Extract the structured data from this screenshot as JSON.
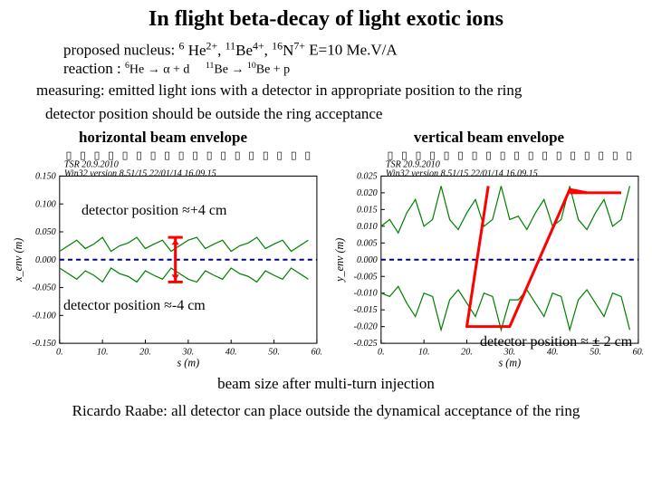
{
  "title": {
    "text": "In flight beta-decay of light exotic ions",
    "fontsize": 24
  },
  "line1": {
    "prefix": "proposed nucleus: ",
    "nuclei_html": "<sup>6</sup> He<sup>2+</sup>, <sup>11</sup>Be<sup>4+</sup>, <sup>16</sup>N<sup>7+</sup>",
    "suffix": "  E=10 Me.V/A",
    "fontsize": 17
  },
  "line2": {
    "prefix": "reaction : ",
    "reaction_html": "<sup>6</sup>He → α + d &nbsp;&nbsp;&nbsp; <sup>11</sup>Be → <sup>10</sup>Be + p",
    "fontsize": 17
  },
  "line3": {
    "text": "measuring: emitted light ions with a detector in appropriate position to the ring",
    "fontsize": 17
  },
  "line4": {
    "text": "detector position should be outside the ring acceptance",
    "fontsize": 17
  },
  "chart_left": {
    "title": "horizontal beam envelope",
    "header_text": "TSR 20.9.2010\nWin32 version 8.51/15        22/01/14 16.09.15",
    "ylabel": "x_env (m)",
    "xlabel": "s (m)",
    "xlim": [
      0,
      60
    ],
    "xtick_step": 10,
    "ylim": [
      -0.15,
      0.15
    ],
    "ytick_step": 0.05,
    "series_upper": {
      "color": "#008000",
      "points": [
        [
          0,
          0.015
        ],
        [
          2,
          0.025
        ],
        [
          4,
          0.035
        ],
        [
          6,
          0.02
        ],
        [
          8,
          0.028
        ],
        [
          10,
          0.04
        ],
        [
          12,
          0.015
        ],
        [
          14,
          0.025
        ],
        [
          16,
          0.03
        ],
        [
          18,
          0.04
        ],
        [
          20,
          0.02
        ],
        [
          22,
          0.028
        ],
        [
          24,
          0.035
        ],
        [
          26,
          0.015
        ],
        [
          28,
          0.025
        ],
        [
          30,
          0.035
        ],
        [
          32,
          0.04
        ],
        [
          34,
          0.02
        ],
        [
          36,
          0.028
        ],
        [
          38,
          0.035
        ],
        [
          40,
          0.015
        ],
        [
          42,
          0.025
        ],
        [
          44,
          0.03
        ],
        [
          46,
          0.04
        ],
        [
          48,
          0.02
        ],
        [
          50,
          0.028
        ],
        [
          52,
          0.035
        ],
        [
          54,
          0.015
        ],
        [
          56,
          0.025
        ],
        [
          58,
          0.035
        ]
      ]
    },
    "series_lower": {
      "color": "#008000",
      "points": [
        [
          0,
          -0.015
        ],
        [
          2,
          -0.025
        ],
        [
          4,
          -0.035
        ],
        [
          6,
          -0.02
        ],
        [
          8,
          -0.028
        ],
        [
          10,
          -0.04
        ],
        [
          12,
          -0.015
        ],
        [
          14,
          -0.025
        ],
        [
          16,
          -0.03
        ],
        [
          18,
          -0.04
        ],
        [
          20,
          -0.02
        ],
        [
          22,
          -0.028
        ],
        [
          24,
          -0.035
        ],
        [
          26,
          -0.015
        ],
        [
          28,
          -0.025
        ],
        [
          30,
          -0.035
        ],
        [
          32,
          -0.04
        ],
        [
          34,
          -0.02
        ],
        [
          36,
          -0.028
        ],
        [
          38,
          -0.035
        ],
        [
          40,
          -0.015
        ],
        [
          42,
          -0.025
        ],
        [
          44,
          -0.03
        ],
        [
          46,
          -0.04
        ],
        [
          48,
          -0.02
        ],
        [
          50,
          -0.028
        ],
        [
          52,
          -0.035
        ],
        [
          54,
          -0.015
        ],
        [
          56,
          -0.025
        ],
        [
          58,
          -0.035
        ]
      ]
    },
    "dashed_line_y": 0.0,
    "dashed_color": "#000080",
    "marker_band": {
      "x": 27,
      "y_top": 0.04,
      "y_bot": -0.04,
      "color": "#ff0000"
    },
    "annot_top": "detector position ≈+4 cm",
    "annot_bot": "detector position ≈-4 cm",
    "annot_fontsize": 16,
    "header_fontsize": 10,
    "background": "#ffffff",
    "axis_color": "#000000"
  },
  "chart_right": {
    "title": "vertical beam envelope",
    "header_text": "TSR 20.9.2010\nWin32 version 8.51/15        22/01/14 16.09.15",
    "ylabel": "y_env (m)",
    "xlabel": "s (m)",
    "xlim": [
      0,
      60
    ],
    "xtick_step": 10,
    "ylim": [
      -0.025,
      0.025
    ],
    "ytick_step": 0.005,
    "series_upper": {
      "color": "#008000",
      "points": [
        [
          0,
          0.01
        ],
        [
          2,
          0.012
        ],
        [
          4,
          0.008
        ],
        [
          6,
          0.014
        ],
        [
          8,
          0.018
        ],
        [
          10,
          0.01
        ],
        [
          12,
          0.012
        ],
        [
          14,
          0.022
        ],
        [
          16,
          0.012
        ],
        [
          18,
          0.009
        ],
        [
          20,
          0.014
        ],
        [
          22,
          0.018
        ],
        [
          24,
          0.01
        ],
        [
          26,
          0.012
        ],
        [
          28,
          0.022
        ],
        [
          30,
          0.012
        ],
        [
          32,
          0.013
        ],
        [
          34,
          0.009
        ],
        [
          36,
          0.014
        ],
        [
          38,
          0.018
        ],
        [
          40,
          0.01
        ],
        [
          42,
          0.012
        ],
        [
          44,
          0.022
        ],
        [
          46,
          0.012
        ],
        [
          48,
          0.009
        ],
        [
          50,
          0.014
        ],
        [
          52,
          0.018
        ],
        [
          54,
          0.01
        ],
        [
          56,
          0.012
        ],
        [
          58,
          0.022
        ]
      ]
    },
    "series_lower": {
      "color": "#008000",
      "points": [
        [
          0,
          -0.01
        ],
        [
          2,
          -0.011
        ],
        [
          4,
          -0.008
        ],
        [
          6,
          -0.013
        ],
        [
          8,
          -0.017
        ],
        [
          10,
          -0.01
        ],
        [
          12,
          -0.011
        ],
        [
          14,
          -0.021
        ],
        [
          16,
          -0.012
        ],
        [
          18,
          -0.009
        ],
        [
          20,
          -0.013
        ],
        [
          22,
          -0.017
        ],
        [
          24,
          -0.01
        ],
        [
          26,
          -0.011
        ],
        [
          28,
          -0.021
        ],
        [
          30,
          -0.012
        ],
        [
          32,
          -0.012
        ],
        [
          34,
          -0.009
        ],
        [
          36,
          -0.013
        ],
        [
          38,
          -0.017
        ],
        [
          40,
          -0.01
        ],
        [
          42,
          -0.011
        ],
        [
          44,
          -0.021
        ],
        [
          46,
          -0.012
        ],
        [
          48,
          -0.009
        ],
        [
          50,
          -0.013
        ],
        [
          52,
          -0.017
        ],
        [
          54,
          -0.01
        ],
        [
          56,
          -0.011
        ],
        [
          58,
          -0.021
        ]
      ]
    },
    "dashed_line_y": 0.0,
    "dashed_color": "#000080",
    "marker_poly": {
      "points": [
        [
          25,
          0.022
        ],
        [
          20,
          -0.02
        ],
        [
          30,
          -0.02
        ],
        [
          44,
          0.021
        ],
        [
          48,
          0.02
        ]
      ],
      "color": "#ff0000"
    },
    "marker_line": {
      "y": 0.02,
      "x1": 44,
      "x2": 56,
      "color": "#ff0000"
    },
    "annot_bot": "detector position ≈ ± 2 cm",
    "annot_fontsize": 16,
    "header_fontsize": 10,
    "background": "#ffffff",
    "axis_color": "#000000"
  },
  "bottom_line": {
    "text": "beam size after multi-turn injection",
    "fontsize": 17
  },
  "final_line": {
    "text": "Ricardo Raabe: all detector can place outside the dynamical acceptance of the ring",
    "fontsize": 17
  }
}
